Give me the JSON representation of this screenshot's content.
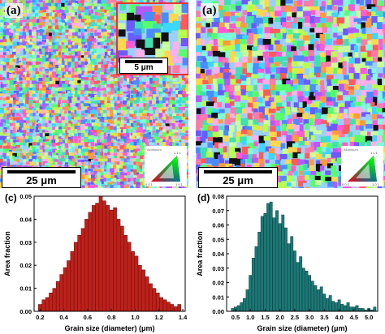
{
  "panels": {
    "top_left": {
      "label": "(a)",
      "scale_bar": "25 μm",
      "inset_scale_bar": "5 μm",
      "legend": {
        "top": "1 1 1",
        "bottom_left": "0 0 1",
        "bottom_right": "1 0 1",
        "orientation_label": "Aluminum"
      }
    },
    "top_right": {
      "label": "(a)",
      "scale_bar": "25 μm",
      "legend": {
        "top": "1 1 1",
        "bottom_left": "0 0 1",
        "bottom_right": "1 0 1",
        "orientation_label": "Aluminum"
      }
    }
  },
  "colors": {
    "bar_c": "#c0201a",
    "bar_c_stroke": "#6e0f0b",
    "bar_d": "#1b7a78",
    "bar_d_stroke": "#0c3f3e",
    "inset_border": "#e8303a",
    "grain_palette": [
      "#ff5a5a",
      "#ff9a3c",
      "#ffd84a",
      "#b8ff4a",
      "#55ff6a",
      "#40e0b0",
      "#3ad7ff",
      "#4a8cff",
      "#6a5aff",
      "#b25aff",
      "#ff5ad2",
      "#ff7aa8",
      "#9ad0ff",
      "#c8ff9a",
      "#ffb0e8",
      "#7affd8"
    ]
  },
  "chart_data": [
    {
      "panel": "(c)",
      "type": "bar",
      "x": [
        0.2,
        0.23,
        0.26,
        0.29,
        0.32,
        0.35,
        0.38,
        0.41,
        0.44,
        0.47,
        0.5,
        0.53,
        0.56,
        0.59,
        0.62,
        0.65,
        0.68,
        0.71,
        0.74,
        0.77,
        0.8,
        0.83,
        0.86,
        0.89,
        0.92,
        0.95,
        0.98,
        1.01,
        1.04,
        1.07,
        1.1,
        1.13,
        1.16,
        1.19,
        1.22,
        1.25,
        1.28,
        1.31,
        1.34,
        1.37
      ],
      "values": [
        0.003,
        0.005,
        0.006,
        0.008,
        0.01,
        0.013,
        0.016,
        0.019,
        0.022,
        0.026,
        0.03,
        0.033,
        0.036,
        0.04,
        0.043,
        0.046,
        0.047,
        0.05,
        0.048,
        0.046,
        0.044,
        0.045,
        0.04,
        0.037,
        0.033,
        0.03,
        0.026,
        0.024,
        0.02,
        0.018,
        0.015,
        0.012,
        0.01,
        0.008,
        0.006,
        0.005,
        0.004,
        0.003,
        0.002,
        0.003
      ],
      "bar_width": 0.028,
      "xlabel": "Grain size (diameter) (μm)",
      "ylabel": "Area fraction",
      "xlim": [
        0.15,
        1.42
      ],
      "ylim": [
        0,
        0.05
      ],
      "xticks": [
        0.2,
        0.4,
        0.6,
        0.8,
        1.0,
        1.2,
        1.4
      ],
      "xticklabels": [
        "0.2",
        "0.4",
        "0.6",
        "0.8",
        "1.0",
        "1.2",
        "1.4"
      ],
      "yticks": [
        0,
        0.01,
        0.02,
        0.03,
        0.04,
        0.05
      ],
      "yticklabels": [
        "0.00",
        "0.01",
        "0.02",
        "0.03",
        "0.04",
        "0.05"
      ],
      "grid": false
    },
    {
      "panel": "(d)",
      "type": "bar",
      "x": [
        0.4,
        0.5,
        0.6,
        0.7,
        0.8,
        0.9,
        1.0,
        1.1,
        1.2,
        1.3,
        1.4,
        1.5,
        1.6,
        1.7,
        1.8,
        1.9,
        2.0,
        2.1,
        2.2,
        2.3,
        2.4,
        2.5,
        2.6,
        2.7,
        2.8,
        2.9,
        3.0,
        3.1,
        3.2,
        3.3,
        3.4,
        3.5,
        3.6,
        3.7,
        3.8,
        3.9,
        4.0,
        4.1,
        4.2,
        4.3,
        4.4,
        4.5,
        4.6,
        4.7,
        4.8,
        4.9,
        5.0,
        5.1,
        5.2
      ],
      "values": [
        0.002,
        0.003,
        0.004,
        0.006,
        0.009,
        0.015,
        0.025,
        0.037,
        0.045,
        0.055,
        0.066,
        0.068,
        0.075,
        0.076,
        0.065,
        0.07,
        0.061,
        0.067,
        0.058,
        0.047,
        0.052,
        0.042,
        0.034,
        0.038,
        0.03,
        0.028,
        0.025,
        0.021,
        0.018,
        0.015,
        0.017,
        0.012,
        0.009,
        0.011,
        0.007,
        0.006,
        0.008,
        0.005,
        0.004,
        0.006,
        0.003,
        0.003,
        0.004,
        0.002,
        0.002,
        0.001,
        0.002,
        0.001,
        0.003
      ],
      "bar_width": 0.09,
      "xlabel": "Grain size (diameter) (μm)",
      "ylabel": "Area fraction",
      "xlim": [
        0.2,
        5.3
      ],
      "ylim": [
        0,
        0.08
      ],
      "xticks": [
        0.5,
        1.0,
        1.5,
        2.0,
        2.5,
        3.0,
        3.5,
        4.0,
        4.5,
        5.0
      ],
      "xticklabels": [
        "0.5",
        "1.0",
        "1.5",
        "2.0",
        "2.5",
        "3.0",
        "3.5",
        "4.0",
        "4.5",
        "5.0"
      ],
      "yticks": [
        0,
        0.01,
        0.02,
        0.03,
        0.04,
        0.05,
        0.06,
        0.07,
        0.08
      ],
      "yticklabels": [
        "0.00",
        "0.01",
        "0.02",
        "0.03",
        "0.04",
        "0.05",
        "0.06",
        "0.07",
        "0.08"
      ],
      "grid": false
    }
  ]
}
